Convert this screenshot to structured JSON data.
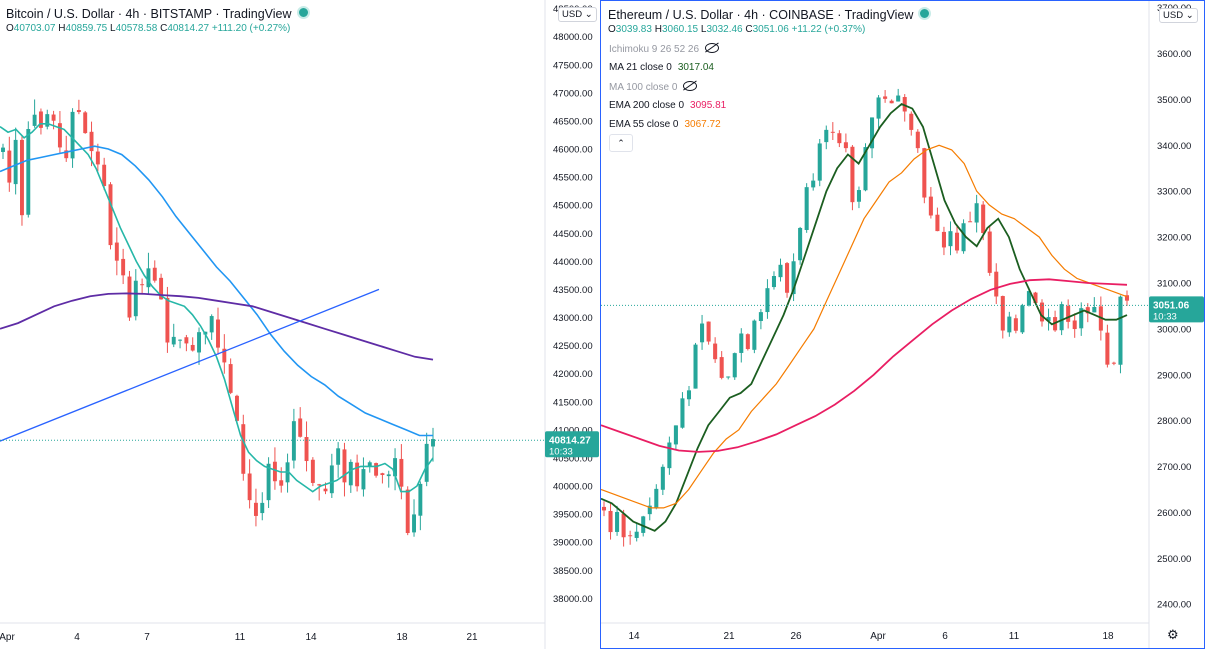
{
  "colors": {
    "up": "#26a69a",
    "down": "#ef5350",
    "btc_ma_fast": "#26b7a8",
    "btc_ma_mid": "#2196f3",
    "btc_ma_slow": "#5e2ca5",
    "btc_trendline": "#2962ff",
    "eth_ma21": "#1b5e20",
    "eth_ema55": "#f57c00",
    "eth_ema200": "#e91e63",
    "price_tag": "#26a69a"
  },
  "btc": {
    "title": "Bitcoin / U.S. Dollar · 4h · BITSTAMP · TradingView",
    "ohlc": {
      "o_label": "O",
      "o": "40703.07",
      "h_label": "H",
      "h": "40859.75",
      "l_label": "L",
      "l": "40578.58",
      "c_label": "C",
      "c": "40814.27",
      "change": "+111.20 (+0.27%)"
    },
    "currency": "USD",
    "last_price": "40814.27",
    "countdown": "10:33",
    "x_labels": [
      "Apr",
      "4",
      "7",
      "11",
      "14",
      "18",
      "21"
    ]
  },
  "eth": {
    "title": "Ethereum / U.S. Dollar · 4h · COINBASE · TradingView",
    "ohlc": {
      "o_label": "O",
      "o": "3039.83",
      "h_label": "H",
      "h": "3060.15",
      "l_label": "L",
      "l": "3032.46",
      "c_label": "C",
      "c": "3051.06",
      "change": "+11.22 (+0.37%)"
    },
    "currency": "USD",
    "last_price": "3051.06",
    "countdown": "10:33",
    "x_labels": [
      "14",
      "21",
      "26",
      "Apr",
      "6",
      "11",
      "18"
    ],
    "indicators": [
      {
        "label": "Ichimoku 9 26 52 26",
        "value": "",
        "faded": true,
        "hidden_icon": true
      },
      {
        "label": "MA 21 close 0",
        "value": "3017.04",
        "faded": false,
        "hidden_icon": false
      },
      {
        "label": "MA 100 close 0",
        "value": "",
        "faded": true,
        "hidden_icon": true
      },
      {
        "label": "EMA 200 close 0",
        "value": "3095.81",
        "faded": false,
        "hidden_icon": false
      },
      {
        "label": "EMA 55 close 0",
        "value": "3067.72",
        "faded": false,
        "hidden_icon": false
      }
    ],
    "collapse_glyph": "⌃"
  },
  "chart_data": [
    {
      "type": "candlestick",
      "title": "Bitcoin / U.S. Dollar · 4h · BITSTAMP",
      "y_ticks": [
        48500,
        48000,
        47500,
        47000,
        46500,
        46000,
        45500,
        45000,
        44500,
        44000,
        43500,
        43000,
        42500,
        42000,
        41500,
        41000,
        40500,
        40000,
        39500,
        39000,
        38500,
        38000
      ],
      "ylim": [
        37650,
        48600
      ],
      "x_labels": [
        "Apr",
        "4",
        "7",
        "11",
        "14",
        "18",
        "21"
      ],
      "close_path": [
        46000,
        45400,
        46200,
        45000,
        46500,
        46800,
        46400,
        46600,
        46300,
        46100,
        45900,
        46500,
        46700,
        46400,
        46000,
        45800,
        45200,
        44400,
        43900,
        43600,
        43200,
        43700,
        43400,
        43900,
        43500,
        43200,
        42700,
        42500,
        42800,
        42400,
        42600,
        42800,
        42900,
        43200,
        42500,
        42100,
        41600,
        41000,
        40300,
        39800,
        39500,
        39700,
        40200,
        40000,
        39800,
        40600,
        41200,
        40900,
        40500,
        40200,
        40000,
        39900,
        40300,
        40500,
        40200,
        40400,
        40100,
        40500,
        40400,
        40300,
        40100,
        40300,
        40500,
        39800,
        39200,
        39400,
        40100,
        40700,
        40800
      ],
      "series": [
        {
          "name": "MA fast (teal)",
          "values": [
            46400,
            46300,
            46350,
            46200,
            46300,
            46450,
            46450,
            46400,
            46350,
            46200,
            46050,
            45900,
            45650,
            45300,
            44950,
            44600,
            44300,
            44000,
            43750,
            43550,
            43400,
            43300,
            43250,
            43200,
            43050,
            42850,
            42600,
            42300,
            41900,
            41400,
            40900,
            40600,
            40450,
            40350,
            40300,
            40250,
            40250,
            40100,
            40000,
            39900,
            40000,
            40050,
            40100,
            40200,
            40300,
            40350,
            40350,
            40350,
            40400,
            40300,
            39900,
            39900,
            40000,
            40300,
            40500
          ]
        },
        {
          "name": "MA mid (blue)",
          "values": [
            45600,
            45700,
            45800,
            45850,
            45900,
            45950,
            46000,
            46050,
            46000,
            45900,
            45700,
            45450,
            45150,
            44800,
            44500,
            44200,
            43900,
            43650,
            43350,
            43050,
            42700,
            42400,
            42150,
            41950,
            41800,
            41600,
            41450,
            41300,
            41200,
            41100,
            41000,
            40900,
            40900
          ]
        },
        {
          "name": "MA slow (purple)",
          "values": [
            42800,
            42900,
            43050,
            43200,
            43300,
            43380,
            43420,
            43430,
            43420,
            43400,
            43380,
            43350,
            43300,
            43250,
            43200,
            43100,
            43000,
            42900,
            42800,
            42700,
            42600,
            42500,
            42400,
            42300,
            42250
          ]
        },
        {
          "name": "Trendline",
          "values": [
            40800,
            43500
          ]
        }
      ]
    },
    {
      "type": "candlestick",
      "title": "Ethereum / U.S. Dollar · 4h · COINBASE",
      "y_ticks": [
        3700,
        3600,
        3500,
        3400,
        3300,
        3200,
        3100,
        3000,
        2900,
        2800,
        2700,
        2600,
        2500,
        2400
      ],
      "ylim": [
        2370,
        3710
      ],
      "x_labels": [
        "14",
        "21",
        "26",
        "Apr",
        "6",
        "11",
        "18"
      ],
      "close_path": [
        2610,
        2570,
        2600,
        2560,
        2540,
        2560,
        2600,
        2620,
        2650,
        2700,
        2750,
        2790,
        2850,
        2880,
        2950,
        3000,
        2970,
        2930,
        2900,
        2890,
        2960,
        2990,
        2970,
        3030,
        3050,
        3090,
        3120,
        3130,
        3080,
        3150,
        3230,
        3300,
        3340,
        3420,
        3450,
        3420,
        3390,
        3380,
        3280,
        3300,
        3410,
        3460,
        3500,
        3510,
        3480,
        3500,
        3490,
        3450,
        3390,
        3300,
        3240,
        3200,
        3190,
        3210,
        3180,
        3220,
        3240,
        3280,
        3200,
        3120,
        3060,
        2990,
        3010,
        3000,
        3060,
        3090,
        3050,
        3030,
        3040,
        3000,
        3040,
        3030,
        3010,
        3050,
        3020,
        3040,
        3010,
        2930,
        2920,
        3060,
        3051
      ],
      "series": [
        {
          "name": "MA 21",
          "values": [
            2630,
            2620,
            2600,
            2580,
            2570,
            2560,
            2580,
            2620,
            2680,
            2740,
            2790,
            2820,
            2850,
            2860,
            2880,
            2930,
            2980,
            3030,
            3090,
            3160,
            3230,
            3300,
            3350,
            3380,
            3360,
            3400,
            3440,
            3470,
            3490,
            3480,
            3440,
            3360,
            3280,
            3230,
            3200,
            3180,
            3220,
            3240,
            3200,
            3130,
            3080,
            3030,
            3010,
            3020,
            3030,
            3040,
            3030,
            3020,
            3020,
            3030
          ]
        },
        {
          "name": "EMA 55",
          "values": [
            2650,
            2640,
            2630,
            2620,
            2610,
            2610,
            2620,
            2650,
            2690,
            2730,
            2760,
            2780,
            2820,
            2850,
            2880,
            2920,
            2960,
            3000,
            3060,
            3120,
            3180,
            3240,
            3280,
            3320,
            3340,
            3370,
            3390,
            3400,
            3390,
            3360,
            3300,
            3270,
            3250,
            3240,
            3220,
            3200,
            3160,
            3130,
            3110,
            3100,
            3090,
            3080,
            3070
          ]
        },
        {
          "name": "EMA 200",
          "values": [
            2790,
            2775,
            2760,
            2745,
            2735,
            2732,
            2734,
            2742,
            2755,
            2770,
            2790,
            2810,
            2835,
            2865,
            2900,
            2940,
            2975,
            3010,
            3040,
            3065,
            3085,
            3098,
            3106,
            3108,
            3104,
            3100,
            3098,
            3096
          ]
        }
      ]
    }
  ]
}
